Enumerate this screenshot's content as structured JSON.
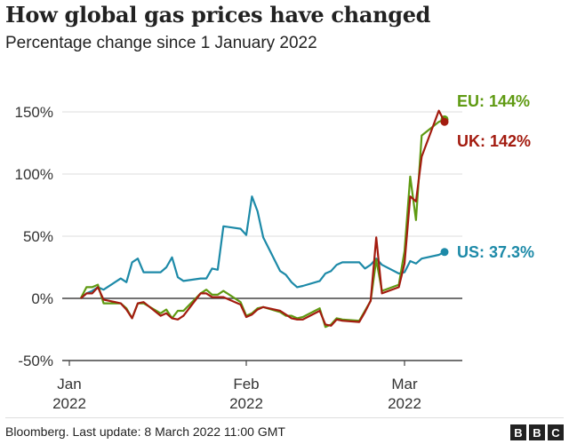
{
  "title": "How global gas prices have changed",
  "subtitle": "Percentage change since 1 January 2022",
  "footer": {
    "source": "Bloomberg. Last update: 8 March 2022 11:00 GMT",
    "logo": "BBC"
  },
  "colors": {
    "EU": "#5f9a12",
    "UK": "#a31b0f",
    "US": "#1d8aa8",
    "grid": "#dcdcdc",
    "axis": "#444444"
  },
  "chart_data": {
    "type": "line",
    "title": "How global gas prices have changed",
    "subtitle": "Percentage change since 1 January 2022",
    "ylim": [
      -50,
      150
    ],
    "yticks": [
      -50,
      0,
      50,
      100,
      150
    ],
    "ytick_labels": [
      "-50%",
      "0%",
      "50%",
      "100%",
      "150%"
    ],
    "xticks": [
      {
        "date": "2022-01-01",
        "label1": "Jan",
        "label2": "2022"
      },
      {
        "date": "2022-02-01",
        "label1": "Feb",
        "label2": "2022"
      },
      {
        "date": "2022-03-01",
        "label1": "Mar",
        "label2": "2022"
      }
    ],
    "grid": true,
    "x": [
      "2022-01-03",
      "2022-01-04",
      "2022-01-05",
      "2022-01-06",
      "2022-01-07",
      "2022-01-10",
      "2022-01-11",
      "2022-01-12",
      "2022-01-13",
      "2022-01-14",
      "2022-01-17",
      "2022-01-18",
      "2022-01-19",
      "2022-01-20",
      "2022-01-21",
      "2022-01-24",
      "2022-01-25",
      "2022-01-26",
      "2022-01-27",
      "2022-01-28",
      "2022-01-31",
      "2022-02-01",
      "2022-02-02",
      "2022-02-03",
      "2022-02-04",
      "2022-02-07",
      "2022-02-08",
      "2022-02-09",
      "2022-02-10",
      "2022-02-11",
      "2022-02-14",
      "2022-02-15",
      "2022-02-16",
      "2022-02-17",
      "2022-02-18",
      "2022-02-21",
      "2022-02-22",
      "2022-02-23",
      "2022-02-24",
      "2022-02-25",
      "2022-02-28",
      "2022-03-01",
      "2022-03-02",
      "2022-03-03",
      "2022-03-04",
      "2022-03-07",
      "2022-03-08"
    ],
    "series": [
      {
        "name": "US",
        "label": "US: 37.3%",
        "values": [
          0,
          4,
          6,
          9,
          7,
          16,
          13,
          29,
          32,
          21,
          21,
          25,
          33,
          17,
          14,
          16,
          16,
          24,
          23,
          58,
          56,
          51,
          82,
          70,
          49,
          22,
          19,
          13,
          9,
          10,
          14,
          20,
          22,
          27,
          29,
          29,
          24,
          27,
          32,
          27,
          20,
          21,
          30,
          28,
          32,
          35,
          37.3
        ]
      },
      {
        "name": "EU",
        "label": "EU: 144%",
        "values": [
          0,
          9,
          9,
          11,
          -4,
          -4,
          -8,
          -16,
          -4,
          -4,
          -12,
          -9,
          -16,
          -10,
          -10,
          4,
          7,
          3,
          3,
          6,
          -3,
          -14,
          -12,
          -8,
          -7,
          -11,
          -14,
          -14,
          -16,
          -15,
          -8,
          -23,
          -21,
          -16,
          -17,
          -18,
          -10,
          -2,
          31,
          6,
          11,
          38,
          98,
          63,
          131,
          142,
          144
        ]
      },
      {
        "name": "UK",
        "label": "UK: 142%",
        "values": [
          0,
          4,
          4,
          9,
          -1,
          -4,
          -9,
          -16,
          -4,
          -3,
          -14,
          -12,
          -16,
          -17,
          -14,
          4,
          4,
          1,
          1,
          1,
          -5,
          -15,
          -13,
          -9,
          -7,
          -10,
          -13,
          -16,
          -17,
          -17,
          -10,
          -21,
          -22,
          -17,
          -18,
          -19,
          -11,
          -2,
          49,
          4,
          9,
          28,
          82,
          78,
          114,
          151,
          142
        ]
      }
    ]
  }
}
